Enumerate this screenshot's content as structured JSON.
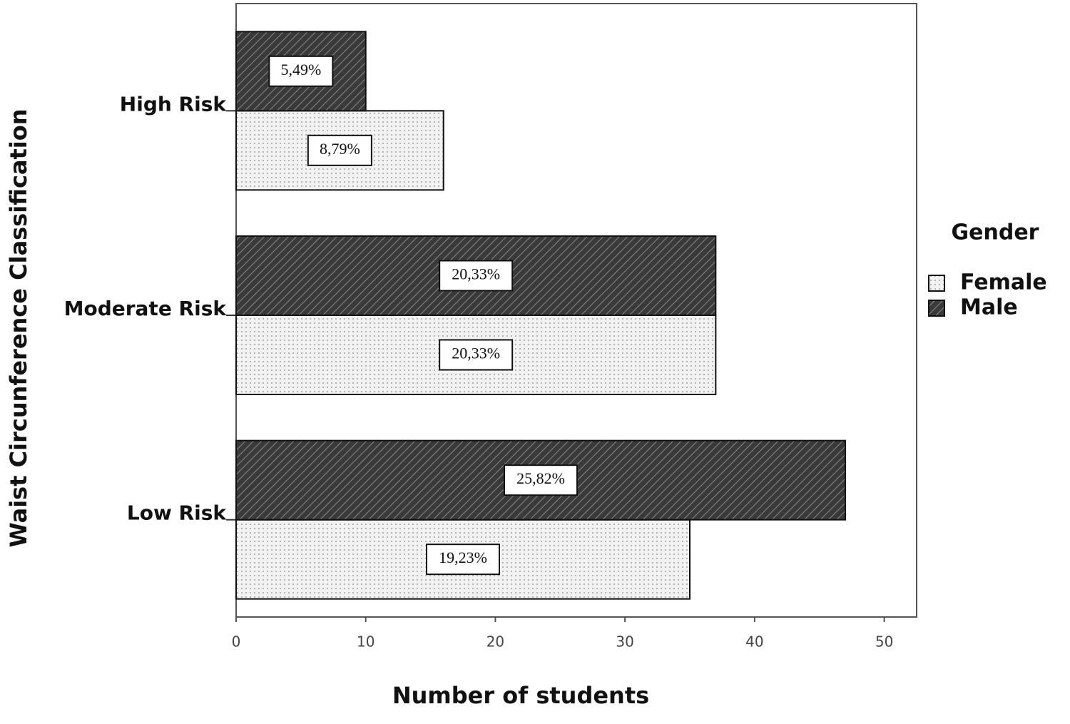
{
  "chart_data": {
    "type": "barh",
    "y_label": "Waist Circunference Classification",
    "x_label": "Number of students",
    "categories": [
      "High Risk",
      "Moderate Risk",
      "Low Risk"
    ],
    "series": [
      {
        "name": "Female",
        "color": "#f2f2f2",
        "pattern": "dots",
        "values": [
          16,
          37,
          35
        ],
        "labels": [
          "8,79%",
          "20,33%",
          "19,23%"
        ]
      },
      {
        "name": "Male",
        "color": "#3a3a3a",
        "pattern": "hatch",
        "values": [
          10,
          37,
          47
        ],
        "labels": [
          "5,49%",
          "20,33%",
          "25,82%"
        ]
      }
    ],
    "xlim": [
      0,
      52.5
    ],
    "xticks": [
      0,
      10,
      20,
      30,
      40,
      50
    ],
    "legend_title": "Gender",
    "legend": "right",
    "grid": false
  }
}
